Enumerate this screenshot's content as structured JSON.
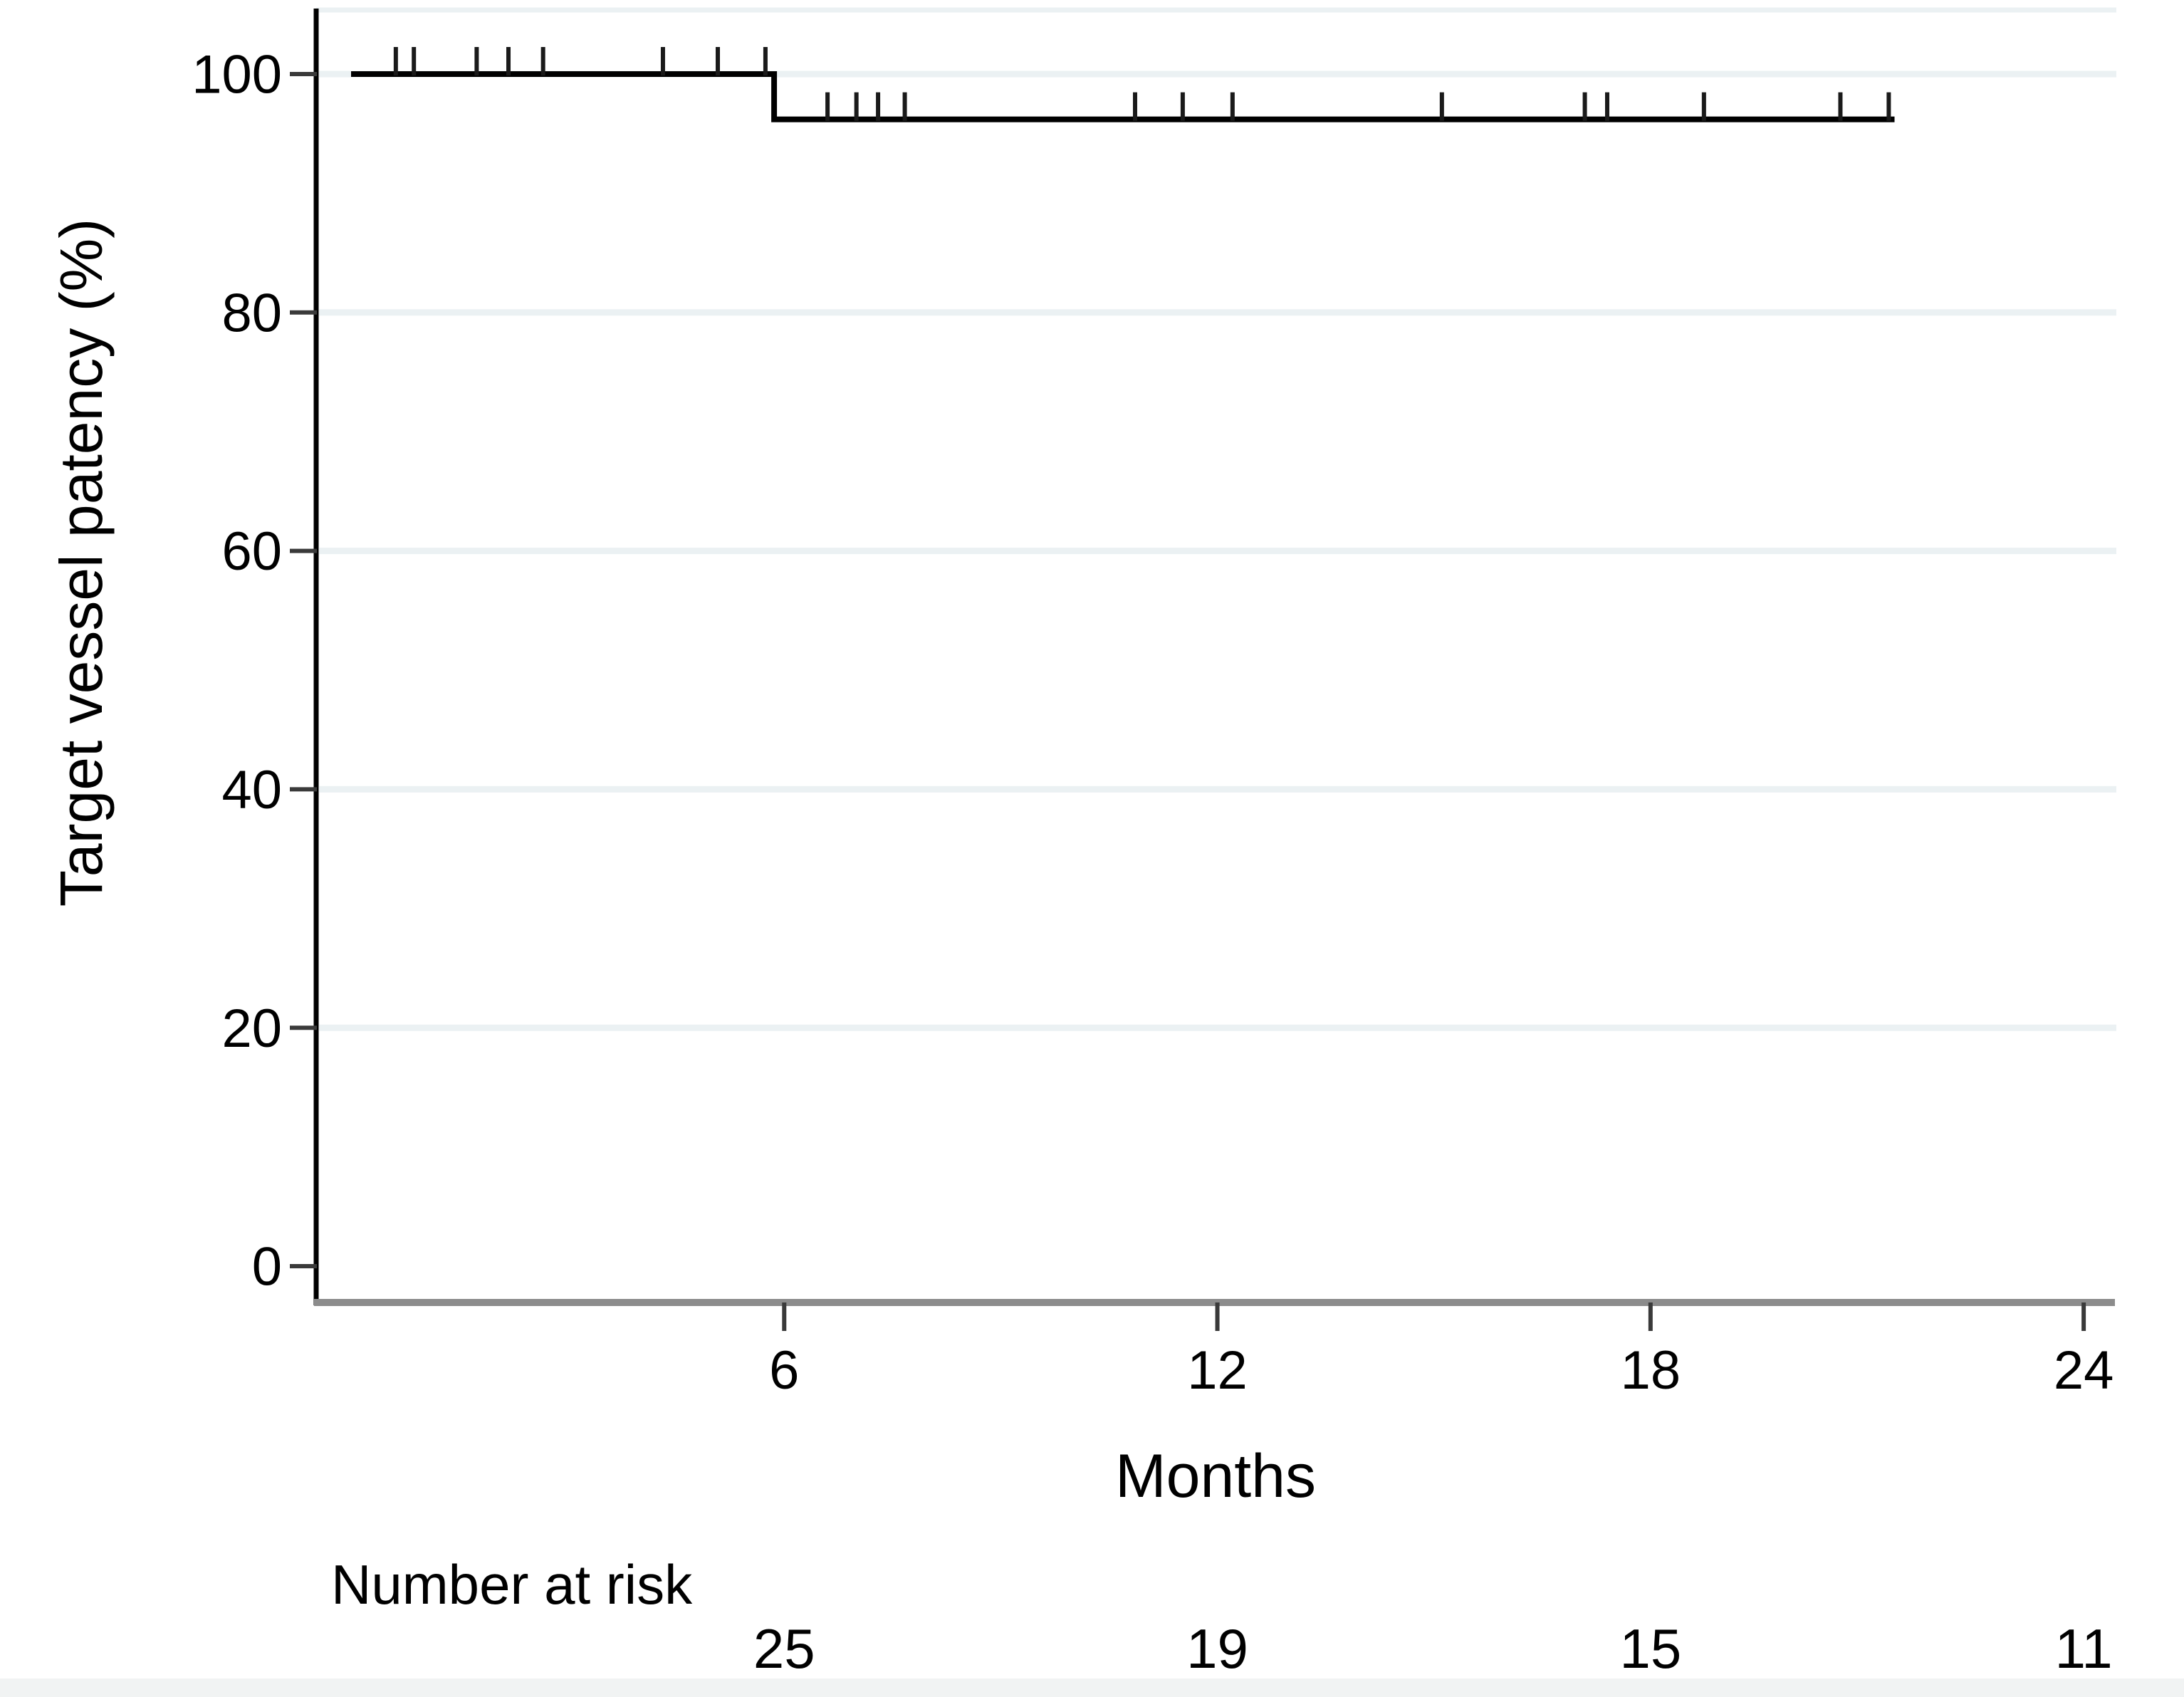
{
  "figure": {
    "background": "#ffffff",
    "colors": {
      "curve": "#000000",
      "censor_tick": "#1a1a1a",
      "y_axis_line": "#000000",
      "x_axis_line": "#8c8c8c",
      "axis_tick": "#3a3a3a",
      "gridline": "#ebf1f3",
      "text": "#000000",
      "bottom_strip": "#f1f3f3"
    }
  },
  "chart_data": {
    "type": "line",
    "subtype": "kaplan-meier-step",
    "title": "",
    "xlabel": "Months",
    "ylabel": "Target vessel patency (%)",
    "xticks": [
      6,
      12,
      18,
      24
    ],
    "yticks": [
      0,
      20,
      40,
      60,
      80,
      100
    ],
    "xlim": [
      0,
      24.45
    ],
    "ylim": [
      0,
      100
    ],
    "grid": "horizontal light-blue gridlines at y ticks",
    "legend": "none",
    "series": [
      {
        "name": "Target vessel patency",
        "color": "#000000",
        "step_points": [
          {
            "x": 0,
            "y": 100
          },
          {
            "x": 5.86,
            "y": 100
          },
          {
            "x": 5.86,
            "y": 96.2
          },
          {
            "x": 21.38,
            "y": 96.2
          }
        ],
        "events": [
          {
            "x": 5.86,
            "from": 100,
            "to": 96.2
          }
        ],
        "censor_marks_at_100pct": [
          0.62,
          0.87,
          1.74,
          2.18,
          2.66,
          4.32,
          5.08,
          5.74
        ],
        "censor_marks_at_96pct": [
          6.6,
          7.0,
          7.3,
          7.67,
          10.86,
          11.52,
          12.21,
          15.11,
          17.09,
          17.4,
          18.74,
          20.63,
          21.3
        ]
      }
    ],
    "risk_table": {
      "label": "Number at risk",
      "times": [
        6,
        12,
        18,
        24
      ],
      "counts": [
        25,
        19,
        15,
        11
      ]
    }
  }
}
